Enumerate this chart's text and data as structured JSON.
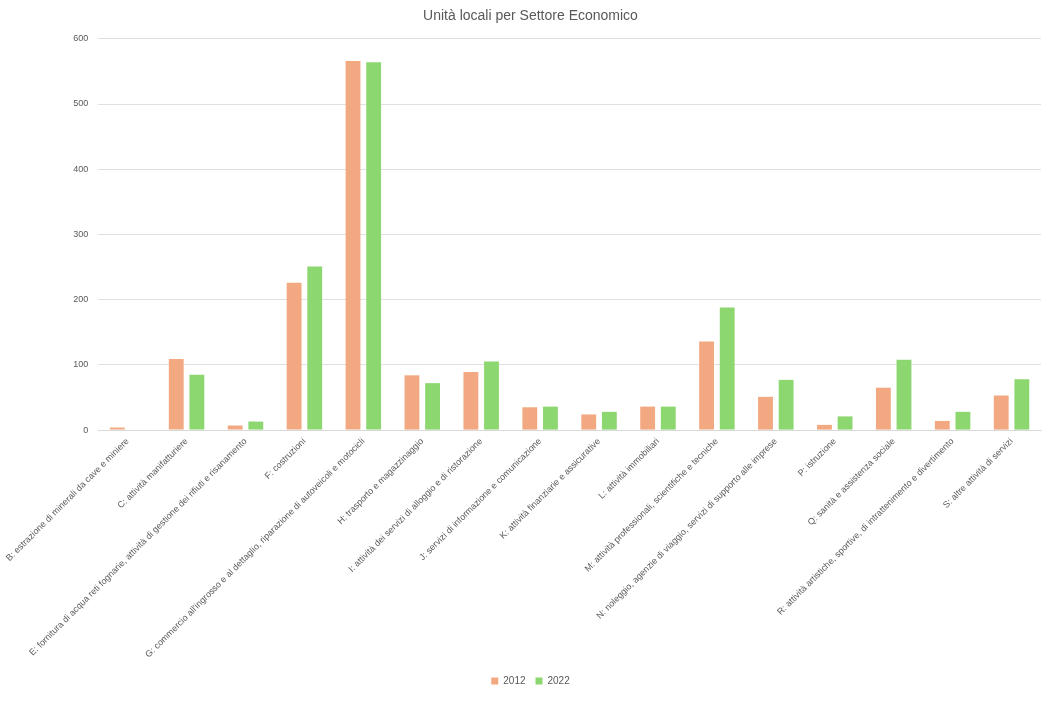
{
  "chart_data": {
    "type": "bar",
    "title": "Unità locali per Settore Economico",
    "categories": [
      "B: estrazione di minerali da cave e miniere",
      "C: attività manifatturiere",
      "E: fornitura di acqua reti fognarie, attività di gestione dei rifiuti e risanamento",
      "F: costruzioni",
      "G: commercio all'ingrosso e al dettaglio, riparazione di autoveicoli e motocicli",
      "H: trasporto e magazzinaggio",
      "I: attività dei servizi di alloggio e di ristorazione",
      "J: servizi di informazione e comunicazione",
      "K: attività finanziarie e assicurative",
      "L: attività immobiliari",
      "M: attività professionali, scientifiche e tecniche",
      "N: noleggio, agenzie di viaggio, servizi di supporto alle imprese",
      "P: istruzione",
      "Q: sanità e assistenza sociale",
      "R: attività artistiche, sportive, di intrattenimento e divertimento",
      "S: altre attività di servizi"
    ],
    "series": [
      {
        "name": "2012",
        "color": "#f2a880",
        "values": [
          4,
          109,
          7,
          226,
          566,
          84,
          89,
          35,
          24,
          36,
          136,
          51,
          8,
          65,
          14,
          53
        ]
      },
      {
        "name": "2022",
        "color": "#8dd771",
        "values": [
          0,
          85,
          13,
          251,
          564,
          72,
          105,
          36,
          28,
          36,
          188,
          77,
          21,
          108,
          28,
          78
        ]
      }
    ],
    "ylim": [
      0,
      600
    ],
    "yticks": [
      0,
      100,
      200,
      300,
      400,
      500,
      600
    ],
    "grid": "y",
    "legend": "bottom"
  }
}
